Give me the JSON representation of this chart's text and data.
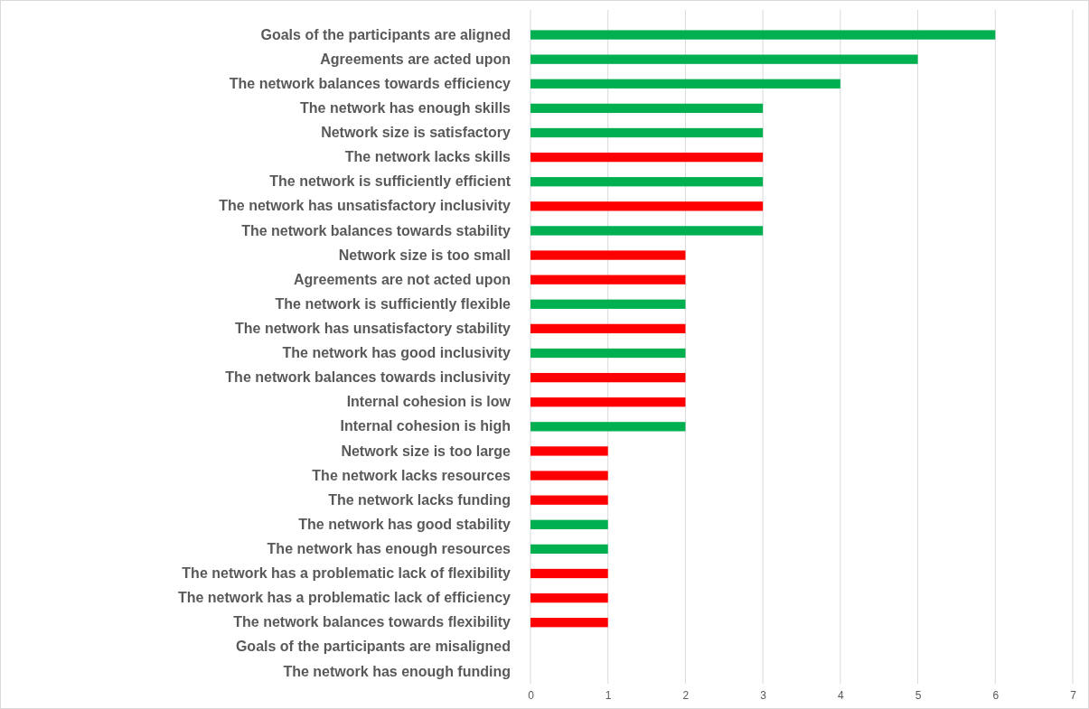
{
  "chart_data": {
    "type": "bar",
    "orientation": "horizontal",
    "categories": [
      "Goals of the participants are aligned",
      "Agreements are acted upon",
      "The network balances towards efficiency",
      "The network has enough skills",
      "Network size is satisfactory",
      "The network lacks skills",
      "The network is sufficiently efficient",
      "The network has unsatisfactory inclusivity",
      "The network balances towards stability",
      "Network size is too small",
      "Agreements are not acted upon",
      "The network is sufficiently flexible",
      "The network has unsatisfactory stability",
      "The network has good inclusivity",
      "The network balances towards inclusivity",
      "Internal cohesion is low",
      "Internal cohesion is high",
      "Network size is too large",
      "The network lacks resources",
      "The network lacks funding",
      "The network has good stability",
      "The network has enough resources",
      "The network has a problematic lack of flexibility",
      "The network has a problematic lack of efficiency",
      "The network balances towards flexibility",
      "Goals of the participants are misaligned",
      "The network has enough funding"
    ],
    "values": [
      6,
      5,
      4,
      3,
      3,
      3,
      3,
      3,
      3,
      2,
      2,
      2,
      2,
      2,
      2,
      2,
      2,
      1,
      1,
      1,
      1,
      1,
      1,
      1,
      1,
      0,
      0
    ],
    "colors": [
      "#00b050",
      "#00b050",
      "#00b050",
      "#00b050",
      "#00b050",
      "#ff0000",
      "#00b050",
      "#ff0000",
      "#00b050",
      "#ff0000",
      "#ff0000",
      "#00b050",
      "#ff0000",
      "#00b050",
      "#ff0000",
      "#ff0000",
      "#00b050",
      "#ff0000",
      "#ff0000",
      "#ff0000",
      "#00b050",
      "#00b050",
      "#ff0000",
      "#ff0000",
      "#ff0000",
      "#ff0000",
      "#00b050"
    ],
    "xlim": [
      0,
      7
    ],
    "xticks": [
      0,
      1,
      2,
      3,
      4,
      5,
      6,
      7
    ],
    "grid": "x"
  }
}
